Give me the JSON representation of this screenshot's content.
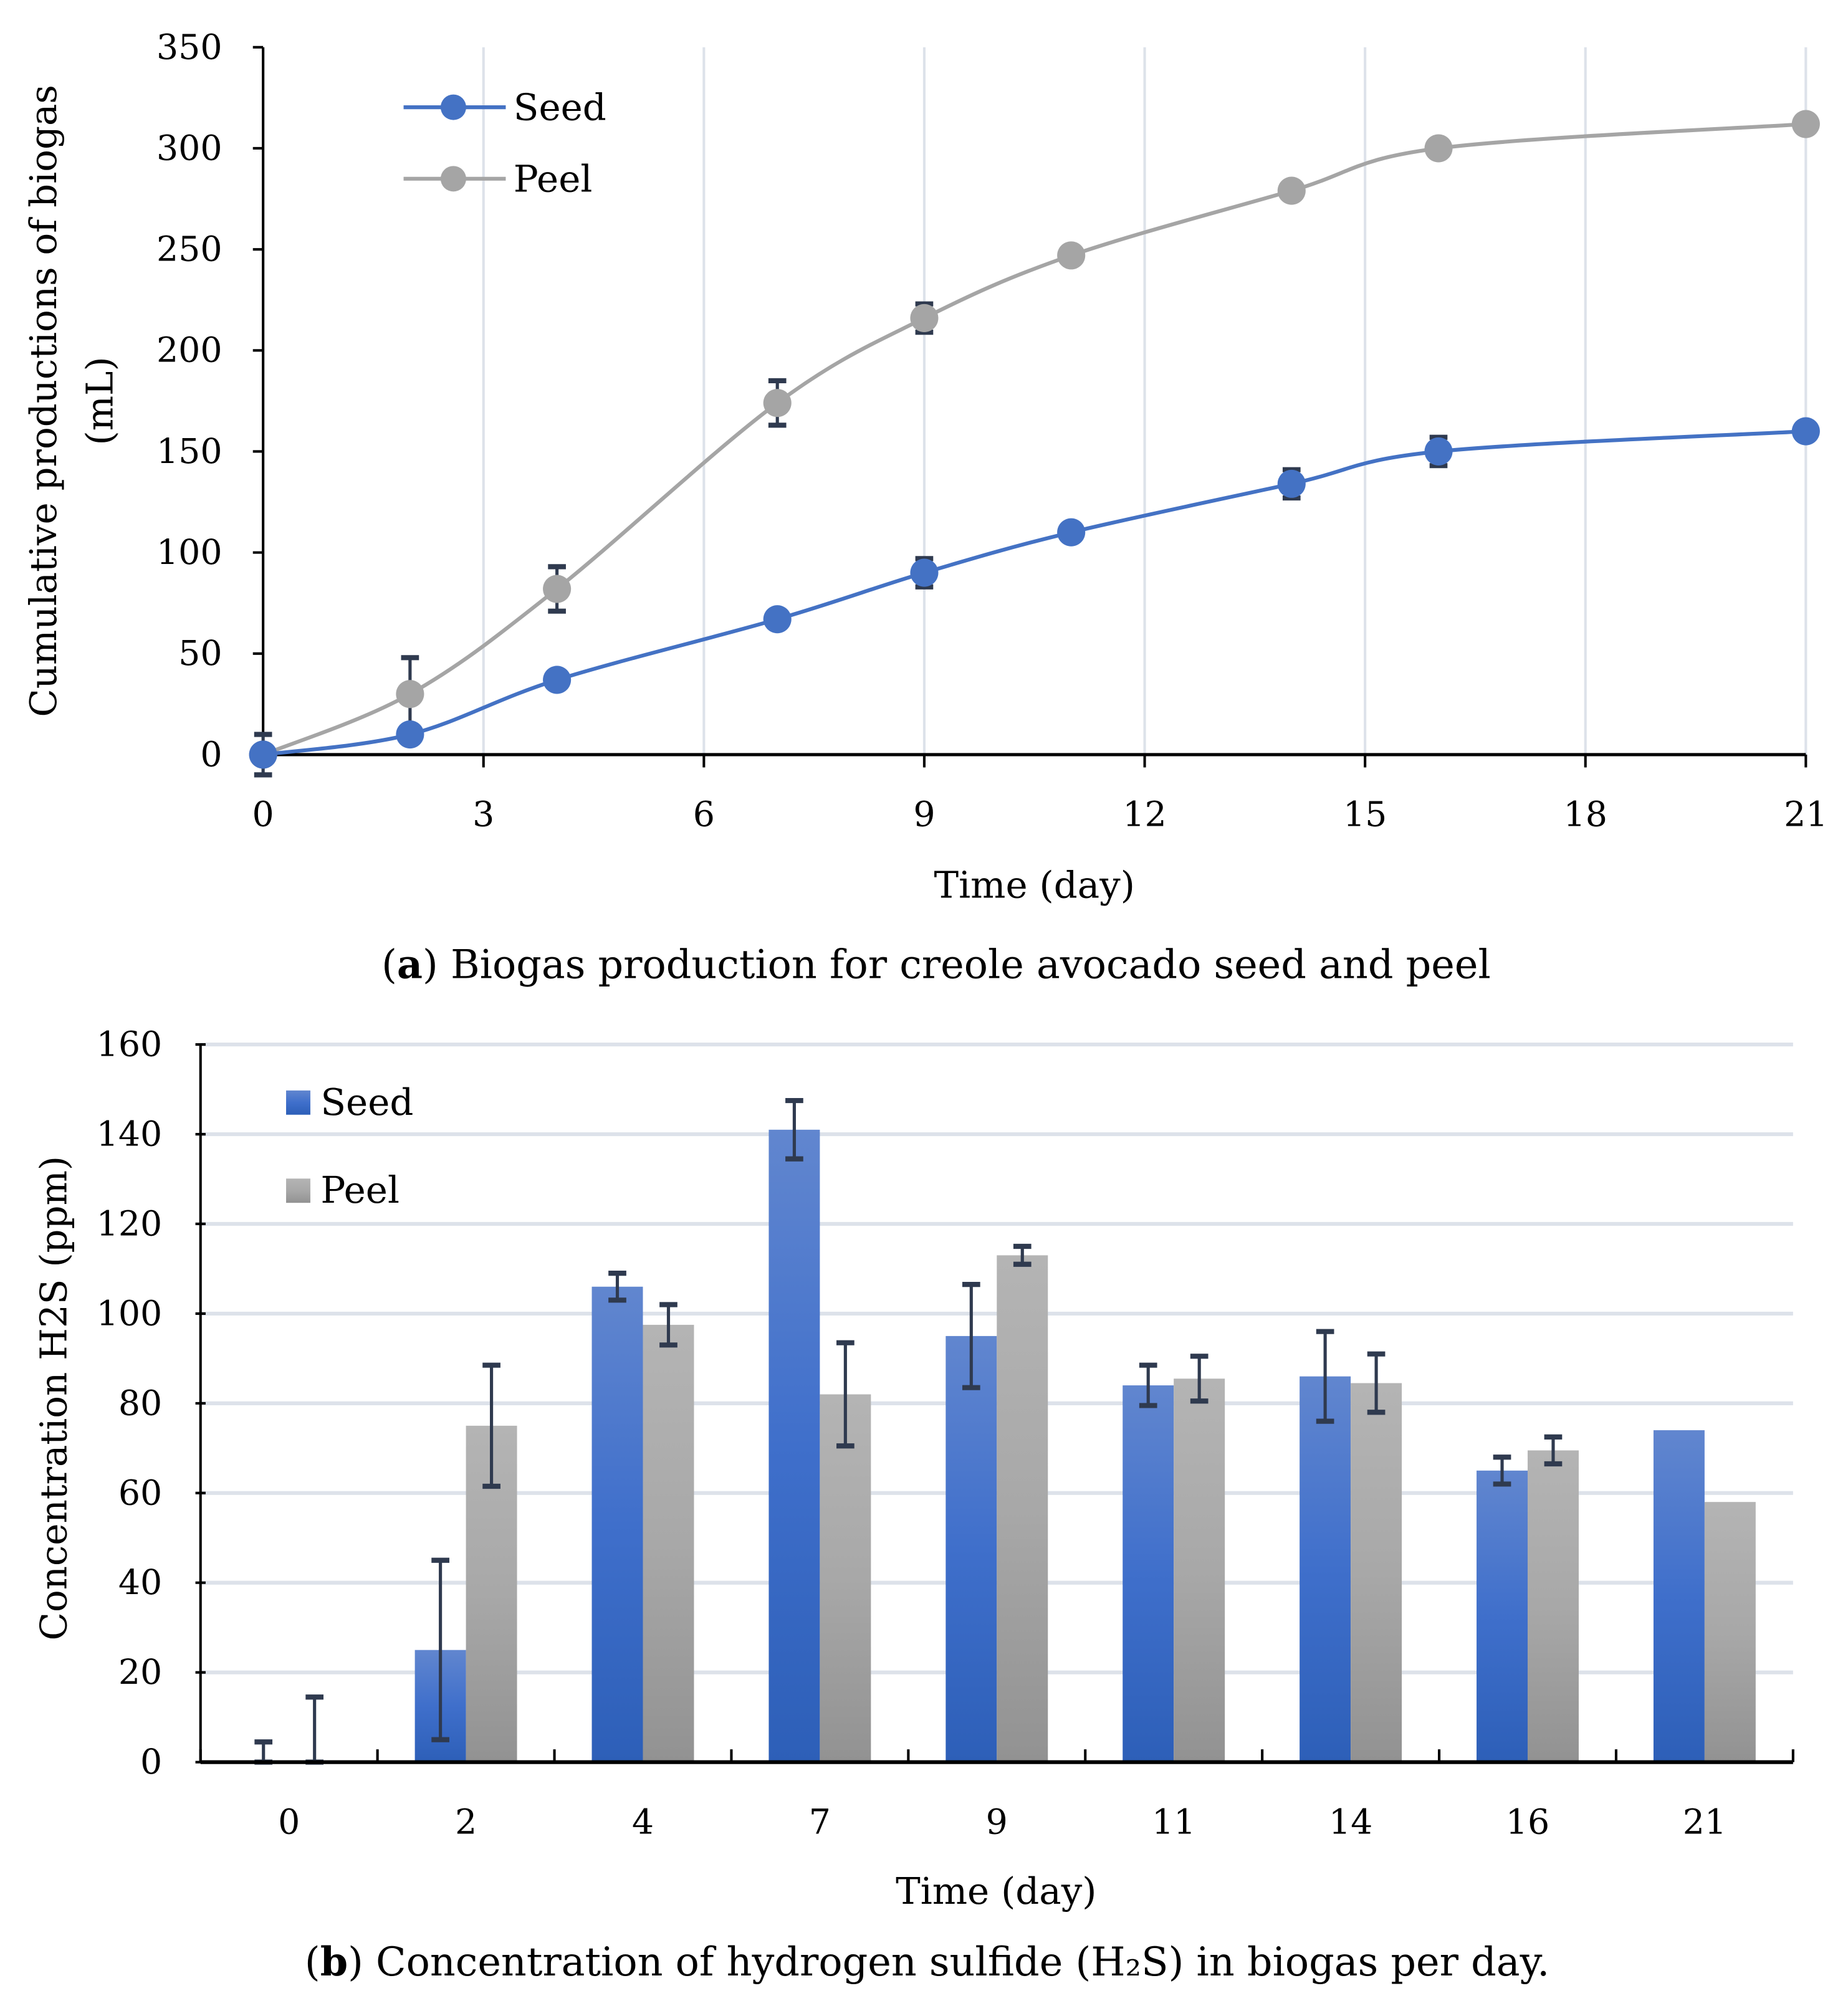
{
  "chart_data": [
    {
      "type": "line",
      "caption_prefix": "(",
      "caption_letter": "a",
      "caption_text": ") Biogas production for creole avocado seed and peel",
      "xlabel": "Time (day)",
      "ylabel_line1": "Cumulative productions of biogas",
      "ylabel_line2": "(mL)",
      "xlim": [
        0,
        21
      ],
      "ylim": [
        0,
        350
      ],
      "xticks": [
        0,
        3,
        6,
        9,
        12,
        15,
        18,
        21
      ],
      "yticks": [
        0,
        50,
        100,
        150,
        200,
        250,
        300,
        350
      ],
      "grid": "vertical",
      "legend_position": "top-left",
      "x": [
        0,
        2,
        4,
        7,
        9,
        11,
        14,
        16,
        21
      ],
      "series": [
        {
          "name": "Seed",
          "color": "#4472c4",
          "values": [
            0,
            10,
            37,
            67,
            90,
            110,
            134,
            150,
            160
          ],
          "errors": [
            10,
            0,
            0,
            0,
            7,
            0,
            7,
            7,
            0
          ]
        },
        {
          "name": "Peel",
          "color": "#a5a5a5",
          "values": [
            0,
            30,
            82,
            174,
            216,
            247,
            279,
            300,
            312
          ],
          "errors": [
            0,
            18,
            11,
            11,
            7,
            0,
            0,
            0,
            0
          ]
        }
      ]
    },
    {
      "type": "bar",
      "caption_prefix": "(",
      "caption_letter": "b",
      "caption_text": ") Concentration of hydrogen sulfide (H₂S) in biogas per day.",
      "xlabel": "Time (day)",
      "ylabel": "Concentration H2S (ppm)",
      "ylim": [
        0,
        160
      ],
      "yticks": [
        0,
        20,
        40,
        60,
        80,
        100,
        120,
        140,
        160
      ],
      "grid": "horizontal",
      "legend_position": "top-left",
      "categories": [
        "0",
        "2",
        "4",
        "7",
        "9",
        "11",
        "14",
        "16",
        "21"
      ],
      "series": [
        {
          "name": "Seed",
          "color": "#4472c4",
          "values": [
            0,
            25,
            106,
            141,
            95,
            84,
            86,
            65,
            74
          ],
          "errors": [
            4.5,
            20,
            3,
            6.5,
            11.5,
            4.5,
            10,
            3,
            0
          ]
        },
        {
          "name": "Peel",
          "color": "#a5a5a5",
          "values": [
            0,
            75,
            97.5,
            82,
            113,
            85.5,
            84.5,
            69.5,
            58
          ],
          "errors": [
            14.5,
            13.5,
            4.5,
            11.5,
            2,
            5,
            6.5,
            3,
            0
          ]
        }
      ]
    }
  ]
}
